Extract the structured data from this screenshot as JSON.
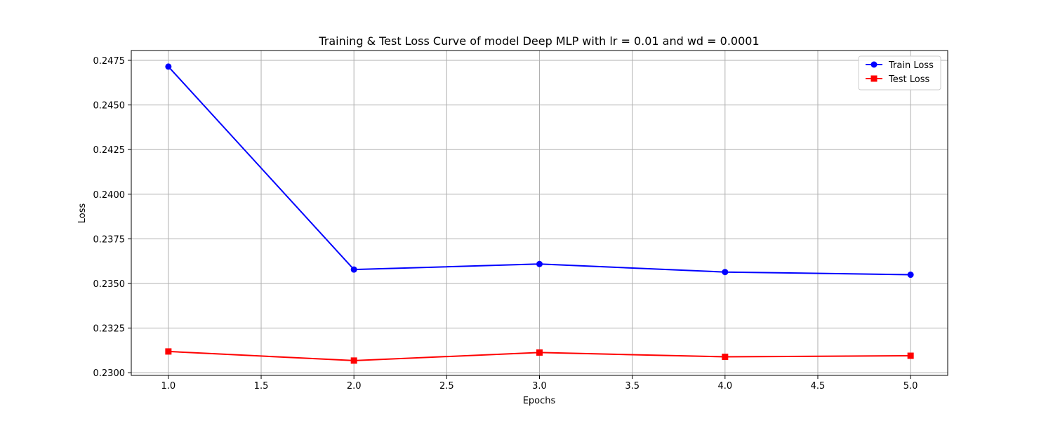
{
  "chart_data": {
    "type": "line",
    "title": "Training & Test Loss Curve of model Deep MLP with lr = 0.01 and wd = 0.0001",
    "xlabel": "Epochs",
    "ylabel": "Loss",
    "x": [
      1,
      2,
      3,
      4,
      5
    ],
    "xlim": [
      0.8,
      5.2
    ],
    "ylim": [
      0.22985,
      0.24805
    ],
    "xticks": [
      1.0,
      1.5,
      2.0,
      2.5,
      3.0,
      3.5,
      4.0,
      4.5,
      5.0
    ],
    "xtick_labels": [
      "1.0",
      "1.5",
      "2.0",
      "2.5",
      "3.0",
      "3.5",
      "4.0",
      "4.5",
      "5.0"
    ],
    "yticks": [
      0.23,
      0.2325,
      0.235,
      0.2375,
      0.24,
      0.2425,
      0.245,
      0.2475
    ],
    "ytick_labels": [
      "0.2300",
      "0.2325",
      "0.2350",
      "0.2375",
      "0.2400",
      "0.2425",
      "0.2450",
      "0.2475"
    ],
    "grid": true,
    "legend_position": "top-right",
    "series": [
      {
        "name": "Train Loss",
        "color": "#0000ff",
        "marker": "circle",
        "values": [
          0.24715,
          0.23578,
          0.23609,
          0.23564,
          0.23549
        ]
      },
      {
        "name": "Test Loss",
        "color": "#ff0000",
        "marker": "square",
        "values": [
          0.23119,
          0.23068,
          0.23113,
          0.23089,
          0.23095
        ]
      }
    ]
  }
}
